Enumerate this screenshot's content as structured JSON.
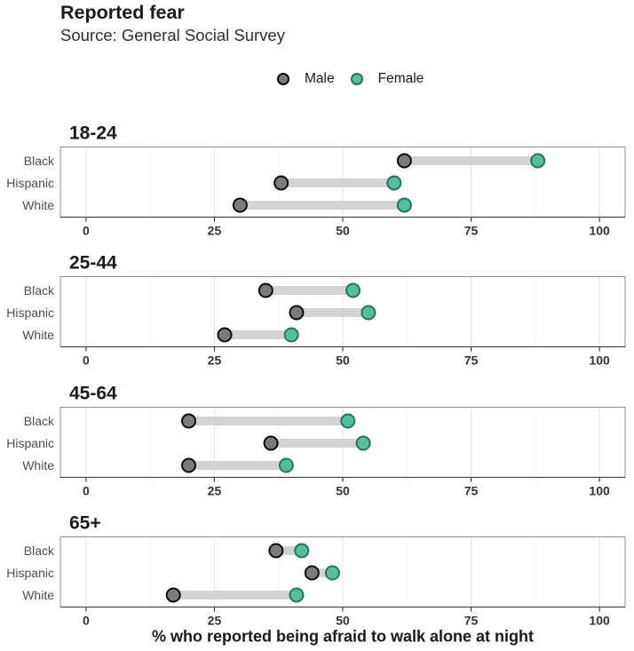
{
  "chart_data": {
    "type": "dumbbell",
    "title": "Reported fear",
    "subtitle": "Source: General Social Survey",
    "xlabel": "% who reported being afraid to walk alone at night",
    "x_ticks": [
      0,
      25,
      50,
      75,
      100
    ],
    "xlim": [
      -5,
      105
    ],
    "grid": "on",
    "legend_position": "top-center",
    "categories": [
      "Black",
      "Hispanic",
      "White"
    ],
    "legend": [
      {
        "label": "Male",
        "fill": "#7b7b7b",
        "stroke": "#0d0d0d"
      },
      {
        "label": "Female",
        "fill": "#55be9d",
        "stroke": "#26735f"
      }
    ],
    "facets": [
      {
        "label": "18-24",
        "rows": [
          {
            "category": "Black",
            "male": 62,
            "female": 88
          },
          {
            "category": "Hispanic",
            "male": 38,
            "female": 60
          },
          {
            "category": "White",
            "male": 30,
            "female": 62
          }
        ]
      },
      {
        "label": "25-44",
        "rows": [
          {
            "category": "Black",
            "male": 35,
            "female": 52
          },
          {
            "category": "Hispanic",
            "male": 41,
            "female": 55
          },
          {
            "category": "White",
            "male": 27,
            "female": 40
          }
        ]
      },
      {
        "label": "45-64",
        "rows": [
          {
            "category": "Black",
            "male": 20,
            "female": 51
          },
          {
            "category": "Hispanic",
            "male": 36,
            "female": 54
          },
          {
            "category": "White",
            "male": 20,
            "female": 39
          }
        ]
      },
      {
        "label": "65+",
        "rows": [
          {
            "category": "Black",
            "male": 37,
            "female": 42
          },
          {
            "category": "Hispanic",
            "male": 44,
            "female": 48
          },
          {
            "category": "White",
            "male": 17,
            "female": 41
          }
        ]
      }
    ],
    "colors": {
      "male_fill": "#7b7b7b",
      "male_stroke": "#0d0d0d",
      "female_fill": "#55be9d",
      "female_stroke": "#26735f",
      "connector": "#d3d3d3",
      "grid_major": "#e3e3e3",
      "grid_minor": "#f1f1f1",
      "panel_border": "#8c8c8c",
      "axis_line": "#4a4a4a",
      "tick": "#333333",
      "tick_label": "#333333",
      "row_label": "#4d4d4d",
      "text": "#1a1a1a"
    }
  }
}
